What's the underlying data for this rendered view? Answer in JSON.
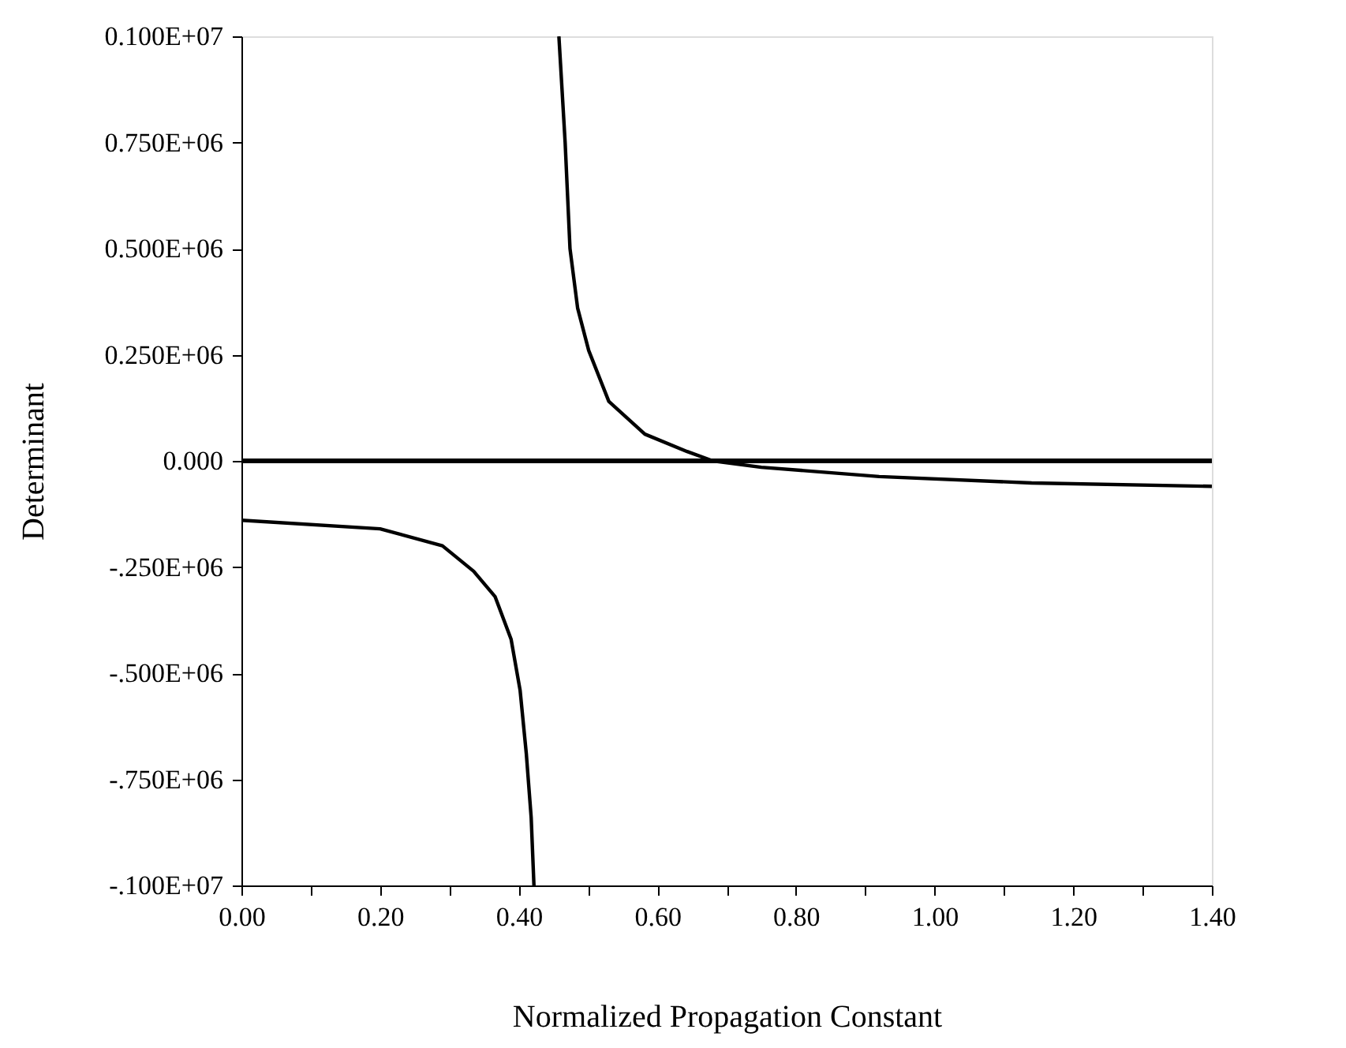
{
  "chart_data": {
    "type": "line",
    "xlabel": "Normalized Propagation Constant",
    "ylabel": "Determinant",
    "series": [
      {
        "color": "#000000",
        "x": [
          0.0,
          0.2,
          0.29,
          0.335,
          0.366,
          0.389,
          0.402,
          0.411,
          0.418,
          0.422
        ],
        "values": [
          -140000,
          -160000,
          -200000,
          -260000,
          -320000,
          -420000,
          -540000,
          -690000,
          -840000,
          -1000000
        ]
      },
      {
        "color": "#000000",
        "x": [
          0.458,
          0.467,
          0.474,
          0.485,
          0.501,
          0.53,
          0.582,
          0.643,
          0.68,
          0.75,
          0.92,
          1.14,
          1.4
        ],
        "values": [
          1000000,
          750000,
          500000,
          360000,
          260000,
          140000,
          63000,
          22000,
          0,
          -15000,
          -37000,
          -52000,
          -60000
        ]
      }
    ],
    "ref_lines": [
      {
        "axis": "y",
        "value": 0,
        "color": "#000000"
      }
    ],
    "xlim": [
      0,
      1.4
    ],
    "xticks": [
      {
        "value": 0,
        "label": "0.00"
      },
      {
        "value": 0.1,
        "label": null
      },
      {
        "value": 0.2,
        "label": "0.20"
      },
      {
        "value": 0.3,
        "label": null
      },
      {
        "value": 0.4,
        "label": "0.40"
      },
      {
        "value": 0.5,
        "label": null
      },
      {
        "value": 0.6,
        "label": "0.60"
      },
      {
        "value": 0.7,
        "label": null
      },
      {
        "value": 0.8,
        "label": "0.80"
      },
      {
        "value": 0.9,
        "label": null
      },
      {
        "value": 1.0,
        "label": "1.00"
      },
      {
        "value": 1.1,
        "label": null
      },
      {
        "value": 1.2,
        "label": "1.20"
      },
      {
        "value": 1.3,
        "label": null
      },
      {
        "value": 1.4,
        "label": "1.40"
      }
    ],
    "ylim": [
      -1000000,
      1000000
    ],
    "yticks": [
      {
        "value": -1000000,
        "label": "-.100E+07"
      },
      {
        "value": -750000,
        "label": "-.750E+06"
      },
      {
        "value": -500000,
        "label": "-.500E+06"
      },
      {
        "value": -250000,
        "label": "-.250E+06"
      },
      {
        "value": 0,
        "label": "0.000"
      },
      {
        "value": 250000,
        "label": "0.250E+06"
      },
      {
        "value": 500000,
        "label": "0.500E+06"
      },
      {
        "value": 750000,
        "label": "0.750E+06"
      },
      {
        "value": 1000000,
        "label": "0.100E+07"
      }
    ],
    "grid": false,
    "legend": false,
    "marker": "none",
    "line_style": "solid"
  }
}
